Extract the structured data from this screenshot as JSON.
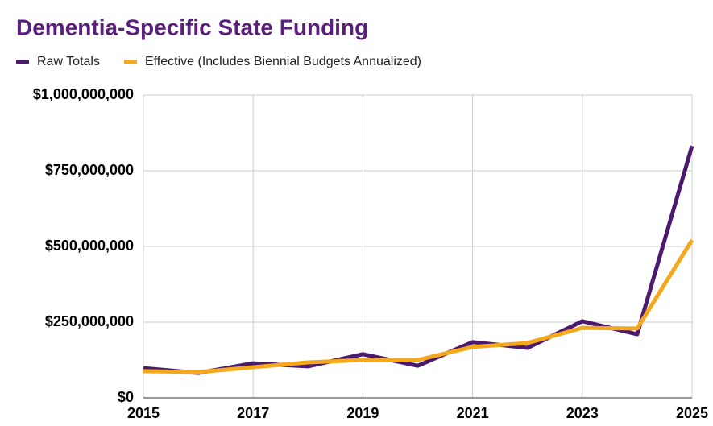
{
  "chart_data": {
    "type": "line",
    "title": "Dementia-Specific State Funding",
    "x": [
      2015,
      2016,
      2017,
      2018,
      2019,
      2020,
      2021,
      2022,
      2023,
      2024,
      2025
    ],
    "series": [
      {
        "name": "Raw Totals",
        "color": "#4b1a6e",
        "values": [
          98000000,
          82000000,
          114000000,
          104000000,
          144000000,
          106000000,
          184000000,
          165000000,
          253000000,
          210000000,
          832000000
        ]
      },
      {
        "name": "Effective (Includes Biennial Budgets Annualized)",
        "color": "#f5a81c",
        "values": [
          88000000,
          85000000,
          101000000,
          117000000,
          125000000,
          125000000,
          168000000,
          181000000,
          231000000,
          229000000,
          521000000
        ]
      }
    ],
    "xlim": [
      2015,
      2025
    ],
    "xticks": [
      2015,
      2017,
      2019,
      2021,
      2023,
      2025
    ],
    "ylim": [
      0,
      1000000000
    ],
    "yticks": [
      {
        "value": 0,
        "label": "$0"
      },
      {
        "value": 250000000,
        "label": "$250,000,000"
      },
      {
        "value": 500000000,
        "label": "$500,000,000"
      },
      {
        "value": 750000000,
        "label": "$750,000,000"
      },
      {
        "value": 1000000000,
        "label": "$1,000,000,000"
      }
    ],
    "grid": true,
    "legend": "top-left",
    "title_color": "#5a1f7a"
  }
}
